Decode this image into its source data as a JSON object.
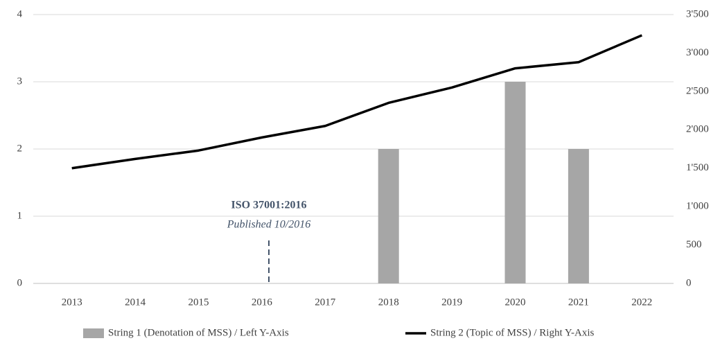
{
  "chart_data": {
    "type": "bar",
    "categories": [
      "2013",
      "2014",
      "2015",
      "2016",
      "2017",
      "2018",
      "2019",
      "2020",
      "2021",
      "2022"
    ],
    "series": [
      {
        "name": "String 1 (Denotation of MSS) / Left Y-Axis",
        "type": "bar",
        "color": "#a6a6a6",
        "values": [
          0,
          0,
          0,
          0,
          0,
          2,
          0,
          3,
          2,
          0
        ]
      },
      {
        "name": "String 2 (Topic of MSS) / Right Y-Axis",
        "type": "line",
        "axis": "y2",
        "color": "#000000",
        "values": [
          1500,
          1620,
          1730,
          1900,
          2050,
          2350,
          2550,
          2800,
          2880,
          3230
        ]
      }
    ],
    "ylim": [
      0,
      4
    ],
    "yticks": [
      0,
      1,
      2,
      3,
      4
    ],
    "y2lim": [
      0,
      3500
    ],
    "y2ticks": [
      0,
      500,
      {
        "value": 1000,
        "label": "1'000"
      },
      {
        "value": 1500,
        "label": "1'500"
      },
      {
        "value": 2000,
        "label": "2'000"
      },
      {
        "value": 2500,
        "label": "2'500"
      },
      {
        "value": 3000,
        "label": "3'000"
      },
      {
        "value": 3500,
        "label": "3'500"
      }
    ],
    "annotation": {
      "title": "ISO 37001:2016",
      "subtitle": "Published 10/2016"
    },
    "grid": true,
    "legend": "bottom"
  }
}
